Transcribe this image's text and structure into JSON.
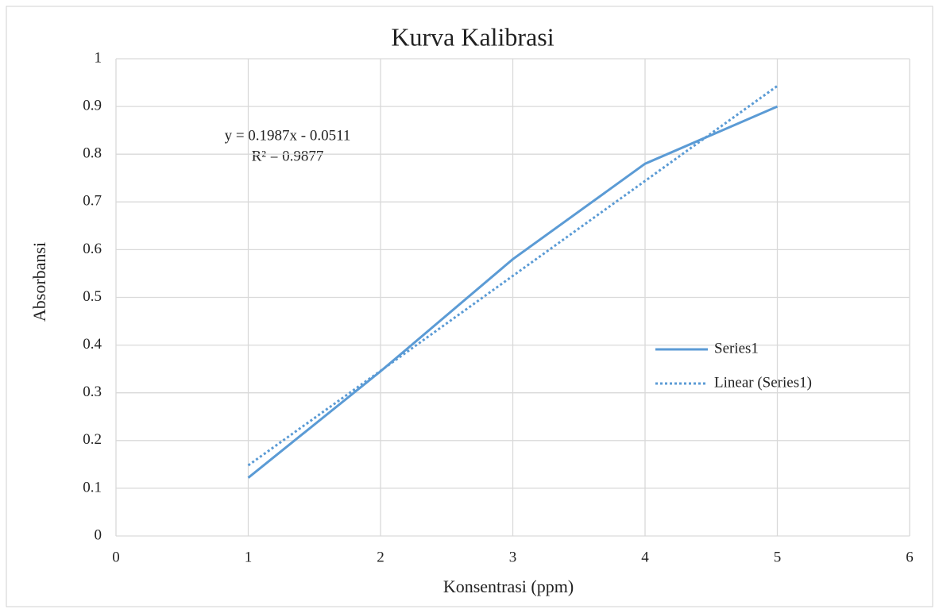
{
  "chart_data": {
    "type": "line",
    "title": "Kurva Kalibrasi",
    "x_label": "Konsentrasi (ppm)",
    "y_label": "Absorbansi",
    "x": [
      1,
      2,
      3,
      4,
      5
    ],
    "series": [
      {
        "name": "Series1",
        "color": "#5b9bd5",
        "line_style": "solid",
        "values": [
          0.122,
          0.345,
          0.58,
          0.78,
          0.9
        ]
      },
      {
        "name": "Linear (Series1)",
        "color": "#5b9bd5",
        "line_style": "dotted",
        "values": [
          0.148,
          0.346,
          0.545,
          0.744,
          0.943
        ]
      }
    ],
    "annotations": [
      "y = 0.1987x - 0.0511",
      "R² = 0.9877"
    ],
    "xlim": [
      0,
      6
    ],
    "xticks": [
      0,
      1,
      2,
      3,
      4,
      5,
      6
    ],
    "ylim": [
      0,
      1
    ],
    "yticks": [
      0,
      0.1,
      0.2,
      0.3,
      0.4,
      0.5,
      0.6,
      0.7,
      0.8,
      0.9,
      1
    ],
    "grid": true,
    "legend": "right"
  }
}
